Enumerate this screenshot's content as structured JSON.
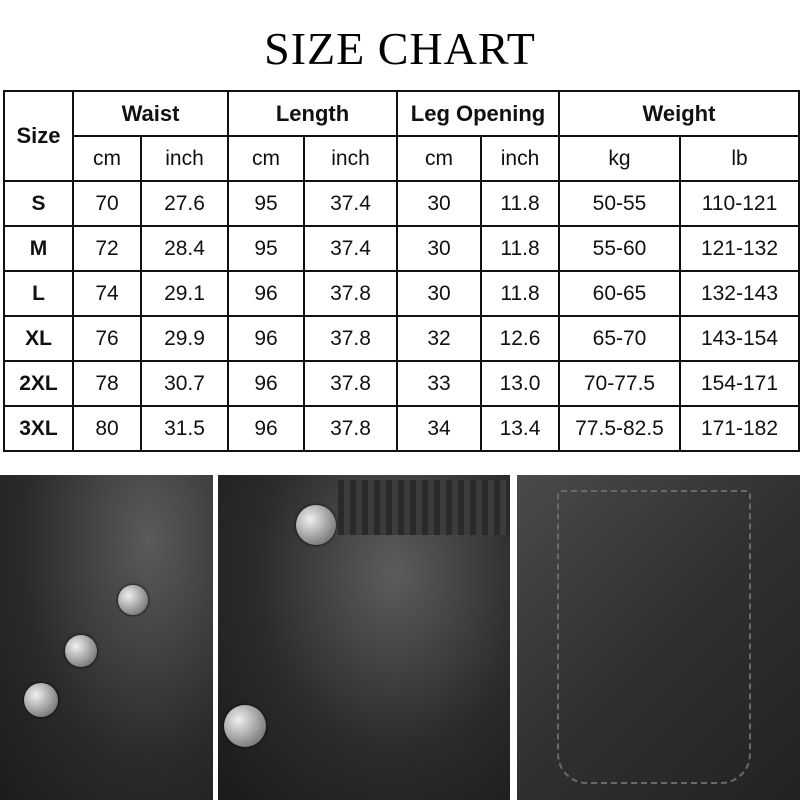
{
  "title": "SIZE CHART",
  "table": {
    "size_header": "Size",
    "groups": [
      "Waist",
      "Length",
      "Leg Opening",
      "Weight"
    ],
    "units": [
      "cm",
      "inch",
      "cm",
      "inch",
      "cm",
      "inch",
      "kg",
      "lb"
    ],
    "rows": [
      [
        "S",
        "70",
        "27.6",
        "95",
        "37.4",
        "30",
        "11.8",
        "50-55",
        "110-121"
      ],
      [
        "M",
        "72",
        "28.4",
        "95",
        "37.4",
        "30",
        "11.8",
        "55-60",
        "121-132"
      ],
      [
        "L",
        "74",
        "29.1",
        "96",
        "37.8",
        "30",
        "11.8",
        "60-65",
        "132-143"
      ],
      [
        "XL",
        "76",
        "29.9",
        "96",
        "37.8",
        "32",
        "12.6",
        "65-70",
        "143-154"
      ],
      [
        "2XL",
        "78",
        "30.7",
        "96",
        "37.8",
        "33",
        "13.0",
        "70-77.5",
        "154-171"
      ],
      [
        "3XL",
        "80",
        "31.5",
        "96",
        "37.8",
        "34",
        "13.4",
        "77.5-82.5",
        "171-182"
      ]
    ]
  }
}
